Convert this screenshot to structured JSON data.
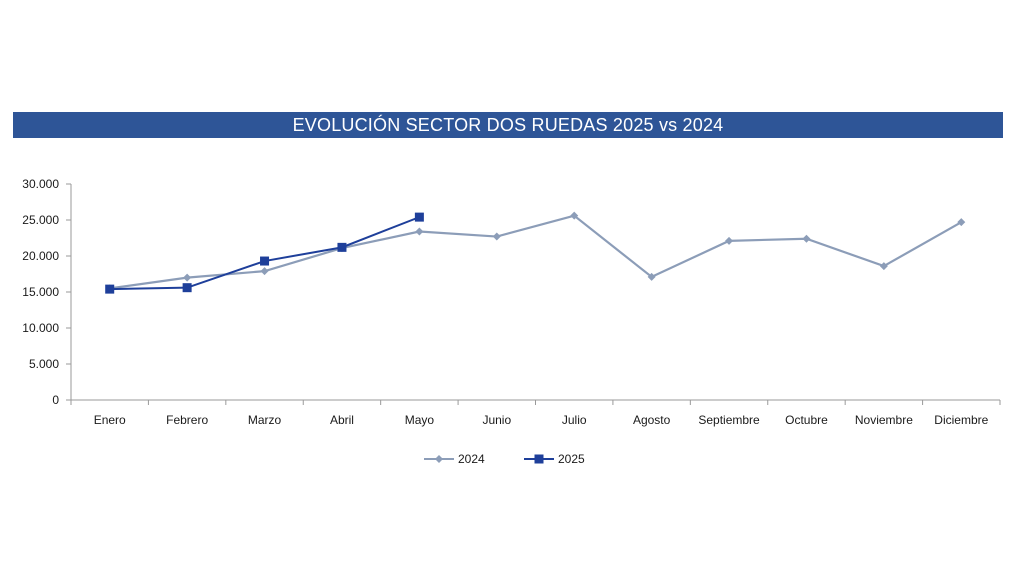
{
  "title": "EVOLUCIÓN SECTOR DOS RUEDAS 2025 vs 2024",
  "chart_data": {
    "type": "line",
    "title": "EVOLUCIÓN SECTOR DOS RUEDAS 2025 vs 2024",
    "xlabel": "",
    "ylabel": "",
    "categories": [
      "Enero",
      "Febrero",
      "Marzo",
      "Abril",
      "Mayo",
      "Junio",
      "Julio",
      "Agosto",
      "Septiembre",
      "Octubre",
      "Noviembre",
      "Diciembre"
    ],
    "ylim": [
      0,
      30000
    ],
    "yticks": [
      0,
      5000,
      10000,
      15000,
      20000,
      25000,
      30000
    ],
    "ytick_labels": [
      "0",
      "5.000",
      "10.000",
      "15.000",
      "20.000",
      "25.000",
      "30.000"
    ],
    "grid": false,
    "legend_position": "bottom",
    "series": [
      {
        "name": "2024",
        "color": "#8c9db8",
        "marker": "diamond",
        "values": [
          15500,
          17000,
          17900,
          21100,
          23400,
          22700,
          25600,
          17100,
          22100,
          22400,
          18600,
          24700
        ]
      },
      {
        "name": "2025",
        "color": "#1e3f9a",
        "marker": "square",
        "values": [
          15400,
          15600,
          19300,
          21200,
          25400,
          null,
          null,
          null,
          null,
          null,
          null,
          null
        ]
      }
    ]
  }
}
